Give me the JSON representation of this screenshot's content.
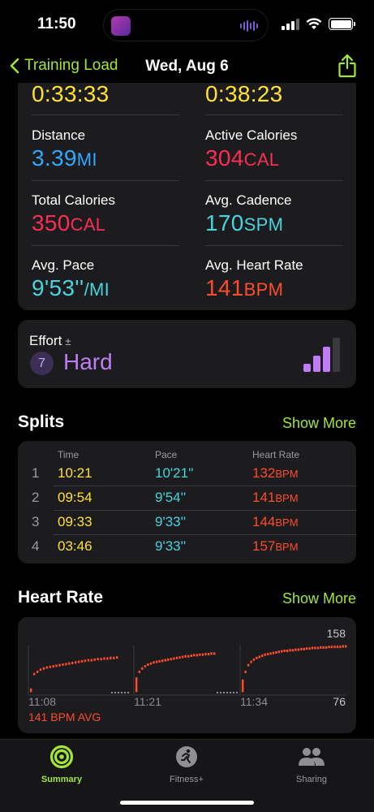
{
  "status": {
    "time": "11:50"
  },
  "nav": {
    "back_label": "Training Load",
    "title": "Wed, Aug 6"
  },
  "metrics": {
    "top_left": "0:33:33",
    "top_right": "0:38:23",
    "rows": [
      {
        "label": "Distance",
        "value": "3.39",
        "unit": "MI",
        "color": "#2ea8ff",
        "label2": "Active Calories",
        "value2": "304",
        "unit2": "CAL",
        "color2": "#fa2d55"
      },
      {
        "label": "Total Calories",
        "value": "350",
        "unit": "CAL",
        "color": "#fa2d55",
        "label2": "Avg. Cadence",
        "value2": "170",
        "unit2": "SPM",
        "color2": "#46d4df"
      },
      {
        "label": "Avg. Pace",
        "value": "9'53''",
        "unit": "/MI",
        "color": "#46d4df",
        "label2": "Avg. Heart Rate",
        "value2": "141",
        "unit2": "BPM",
        "color2": "#ff4b2b"
      }
    ]
  },
  "effort": {
    "label": "Effort",
    "symbol": "±",
    "score": "7",
    "value": "Hard",
    "level": 3,
    "max_level": 4
  },
  "splits": {
    "title": "Splits",
    "show_more": "Show More",
    "headers": {
      "time": "Time",
      "pace": "Pace",
      "hr": "Heart Rate"
    },
    "rows": [
      {
        "num": "1",
        "time": "10:21",
        "pace": "10'21''",
        "hr": "132",
        "hr_unit": "BPM"
      },
      {
        "num": "2",
        "time": "09:54",
        "pace": "9'54''",
        "hr": "141",
        "hr_unit": "BPM"
      },
      {
        "num": "3",
        "time": "09:33",
        "pace": "9'33''",
        "hr": "144",
        "hr_unit": "BPM"
      },
      {
        "num": "4",
        "time": "03:46",
        "pace": "9'33''",
        "hr": "157",
        "hr_unit": "BPM"
      }
    ]
  },
  "heart_rate": {
    "title": "Heart Rate",
    "show_more": "Show More",
    "max": "158",
    "min": "76",
    "times": [
      "11:08",
      "11:21",
      "11:34"
    ],
    "avg_label": "141 BPM AVG"
  },
  "chart_data": {
    "type": "scatter",
    "ylim": [
      76,
      158
    ],
    "x_ticks": [
      "11:08",
      "11:21",
      "11:34"
    ],
    "series": [
      {
        "values": [
          80,
          108,
          112,
          116,
          118,
          120,
          121,
          122,
          123,
          124,
          125,
          126,
          127,
          128,
          129,
          130,
          131,
          132,
          133,
          133,
          134,
          135,
          135,
          136,
          136,
          137,
          137,
          138
        ]
      },
      {
        "values": [
          100,
          112,
          118,
          122,
          125,
          127,
          129,
          130,
          131,
          132,
          133,
          134,
          135,
          136,
          137,
          138,
          139,
          140,
          140,
          141,
          142,
          142,
          143,
          143,
          144,
          144,
          145,
          145
        ]
      },
      {
        "values": [
          96,
          112,
          124,
          130,
          134,
          137,
          139,
          141,
          143,
          144,
          145,
          146,
          147,
          148,
          149,
          150,
          150,
          151,
          151,
          152,
          152,
          153,
          153,
          154,
          154,
          155,
          155,
          155,
          156,
          156,
          156,
          157,
          157,
          157,
          157,
          157,
          158,
          158
        ]
      }
    ],
    "color": "#ff4b2b"
  },
  "tabs": [
    {
      "label": "Summary",
      "color": "#a3e635"
    },
    {
      "label": "Fitness+",
      "color": "#9a9aa0"
    },
    {
      "label": "Sharing",
      "color": "#9a9aa0"
    }
  ]
}
